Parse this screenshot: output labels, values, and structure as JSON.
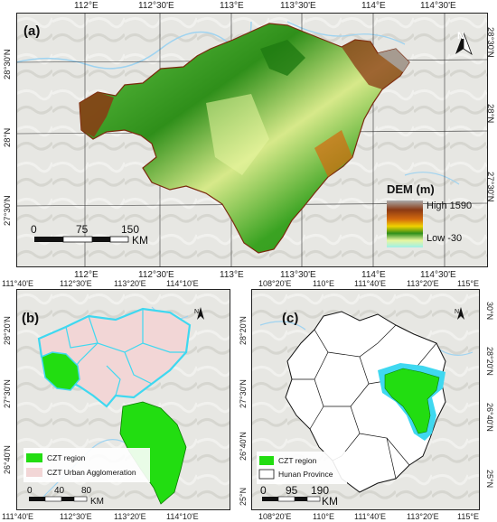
{
  "panel_a": {
    "label": "(a)",
    "north_label": "N",
    "top_ticks": [
      "112°E",
      "112°30'E",
      "113°E",
      "113°30'E",
      "114°E",
      "114°30'E"
    ],
    "bottom_ticks": [
      "112°E",
      "112°30'E",
      "113°E",
      "113°30'E",
      "114°E",
      "114°30'E"
    ],
    "left_ticks": [
      "28°30'N",
      "28°N",
      "27°30'N"
    ],
    "right_ticks": [
      "28°30'N",
      "28°N",
      "27°30'N"
    ],
    "legend": {
      "title": "DEM  (m)",
      "high": "High 1590",
      "low": "Low -30"
    },
    "scale_bar": {
      "labels": [
        "0",
        "75",
        "150"
      ],
      "unit": "KM"
    },
    "colors": {
      "dem_ramp": [
        "#a9a9a9",
        "#8b3a14",
        "#d46a0e",
        "#f0d200",
        "#2f8f1a",
        "#66c84a",
        "#e8f6a0",
        "#9ff0e8"
      ],
      "hillshade": "#e6e6e2"
    }
  },
  "panel_b": {
    "label": "(b)",
    "north_label": "N",
    "top_ticks": [
      "111°40'E",
      "112°30'E",
      "113°20'E",
      "114°10'E"
    ],
    "bottom_ticks": [
      "111°40'E",
      "112°30'E",
      "113°20'E",
      "114°10'E"
    ],
    "left_ticks": [
      "28°20'N",
      "27°30'N",
      "26°40'N"
    ],
    "legend": [
      {
        "label": "CZT region",
        "color": "#22dd11"
      },
      {
        "label": "CZT Urban Agglomeration",
        "color": "#f2d6d6"
      }
    ],
    "scale_bar": {
      "labels": [
        "0",
        "40",
        "80"
      ],
      "unit": "KM"
    },
    "colors": {
      "outline": "#3fd8f0"
    }
  },
  "panel_c": {
    "label": "(c)",
    "north_label": "N",
    "top_ticks": [
      "108°20'E",
      "110°E",
      "111°40'E",
      "113°20'E",
      "115°E"
    ],
    "bottom_ticks": [
      "108°20'E",
      "110°E",
      "111°40'E",
      "113°20'E",
      "115°E"
    ],
    "left_ticks": [
      "28°20'N",
      "27°30'N",
      "26°40'N",
      "25°N"
    ],
    "right_ticks": [
      "30°N",
      "28°20'N",
      "26°40'N",
      "25°N"
    ],
    "legend": [
      {
        "label": "CZT region",
        "color": "#22dd11"
      },
      {
        "label": "Hunan Province",
        "color": "#ffffff"
      }
    ],
    "scale_bar": {
      "labels": [
        "0",
        "95",
        "190"
      ],
      "unit": "KM"
    }
  }
}
